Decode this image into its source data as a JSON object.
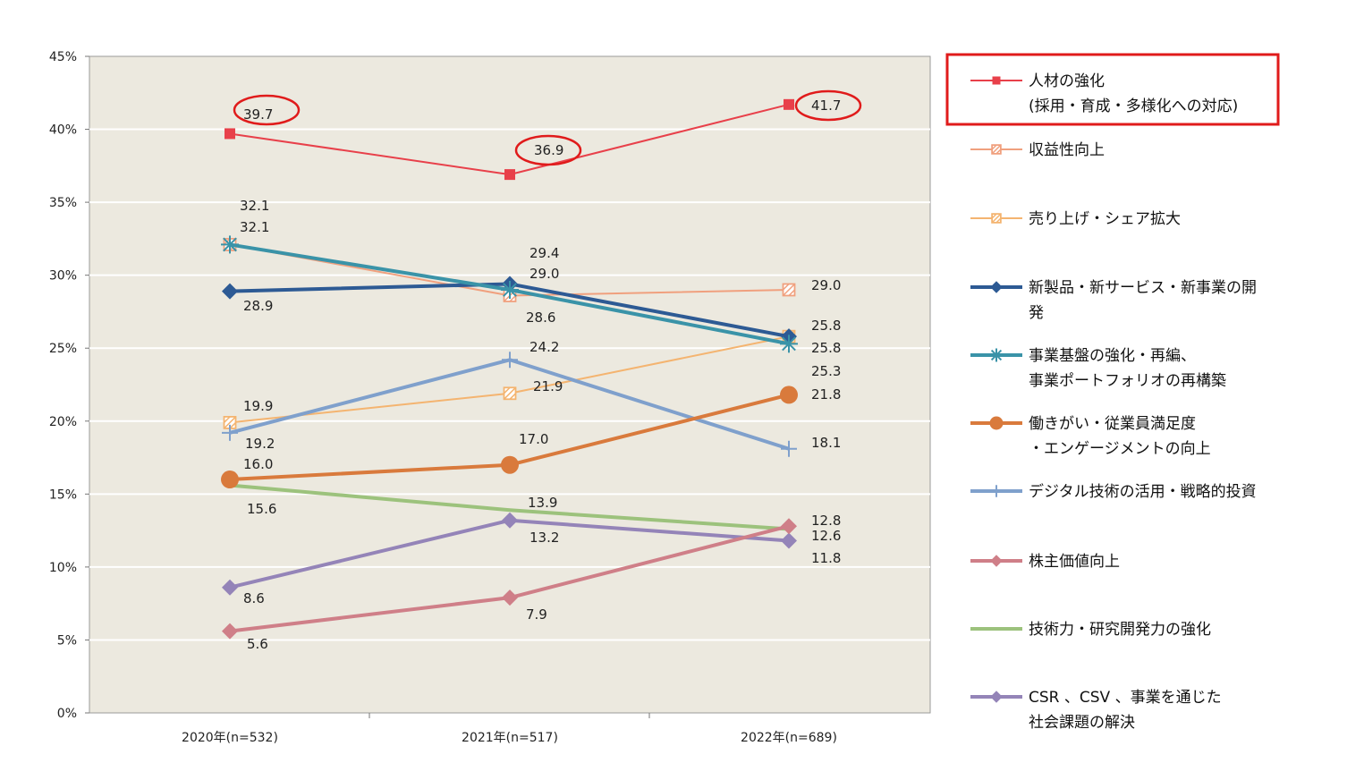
{
  "chart_data": {
    "type": "line",
    "categories": [
      "2020年(n=532)",
      "2021年(n=517)",
      "2022年(n=689)"
    ],
    "ylim": [
      0,
      45
    ],
    "yticks": [
      "0%",
      "5%",
      "10%",
      "15%",
      "20%",
      "25%",
      "30%",
      "35%",
      "40%",
      "45%"
    ],
    "grid": true,
    "legend_position": "right",
    "highlighted_series": "人材の強化",
    "series": [
      {
        "name": "人材の強化",
        "legend_lines": [
          "人材の強化",
          "(採用・育成・多様化への対応)"
        ],
        "values": [
          39.7,
          36.9,
          41.7
        ],
        "labels": [
          "39.7",
          "36.9",
          "41.7"
        ],
        "color": "#e8404a",
        "marker": "square",
        "width": 2
      },
      {
        "name": "収益性向上",
        "legend_lines": [
          "収益性向上"
        ],
        "values": [
          32.1,
          28.6,
          29.0
        ],
        "labels": [
          "32.1",
          "28.6",
          "29.0"
        ],
        "color": "#f0a07e",
        "marker": "square-hatch",
        "width": 2
      },
      {
        "name": "売り上げ・シェア拡大",
        "legend_lines": [
          "売り上げ・シェア拡大"
        ],
        "values": [
          19.9,
          21.9,
          25.8
        ],
        "labels": [
          "19.9",
          "21.9",
          "25.8"
        ],
        "color": "#f4b470",
        "marker": "square-hatch",
        "width": 2
      },
      {
        "name": "新製品・新サービス・新事業の開発",
        "legend_lines": [
          "新製品・新サービス・新事業の開",
          "発"
        ],
        "values": [
          28.9,
          29.4,
          25.8
        ],
        "labels": [
          "28.9",
          "29.4",
          "25.8"
        ],
        "color": "#2d5a94",
        "marker": "diamond",
        "width": 4
      },
      {
        "name": "事業基盤の強化・再編、事業ポートフォリオの再構築",
        "legend_lines": [
          "事業基盤の強化・再編、",
          "事業ポートフォリオの再構築"
        ],
        "values": [
          32.1,
          29.0,
          25.3
        ],
        "labels": [
          "32.1",
          "29.0",
          "25.3"
        ],
        "color": "#3a93a8",
        "marker": "star",
        "width": 4
      },
      {
        "name": "働きがい・従業員満足度・エンゲージメントの向上",
        "legend_lines": [
          "働きがい・従業員満足度",
          "・エンゲージメントの向上"
        ],
        "values": [
          16.0,
          17.0,
          21.8
        ],
        "labels": [
          "16.0",
          "17.0",
          "21.8"
        ],
        "color": "#d97a3c",
        "marker": "circle",
        "width": 4
      },
      {
        "name": "デジタル技術の活用・戦略的投資",
        "legend_lines": [
          "デジタル技術の活用・戦略的投資"
        ],
        "values": [
          19.2,
          24.2,
          18.1
        ],
        "labels": [
          "19.2",
          "24.2",
          "18.1"
        ],
        "color": "#7fa0cc",
        "marker": "plus",
        "width": 4
      },
      {
        "name": "株主価値向上",
        "legend_lines": [
          "株主価値向上"
        ],
        "values": [
          5.6,
          7.9,
          12.8
        ],
        "labels": [
          "5.6",
          "7.9",
          "12.8"
        ],
        "color": "#cf7f88",
        "marker": "diamond",
        "width": 4
      },
      {
        "name": "技術力・研究開発力の強化",
        "legend_lines": [
          "技術力・研究開発力の強化"
        ],
        "values": [
          15.6,
          13.9,
          12.6
        ],
        "labels": [
          "15.6",
          "13.9",
          "12.6"
        ],
        "color": "#9cc27c",
        "marker": "none",
        "width": 4
      },
      {
        "name": "CSR、CSV、事業を通じた社会課題の解決",
        "legend_lines": [
          "CSR 、CSV 、事業を通じた",
          "社会課題の解決"
        ],
        "values": [
          8.6,
          13.2,
          11.8
        ],
        "labels": [
          "8.6",
          "13.2",
          "11.8"
        ],
        "color": "#9484b8",
        "marker": "diamond",
        "width": 4
      }
    ]
  }
}
